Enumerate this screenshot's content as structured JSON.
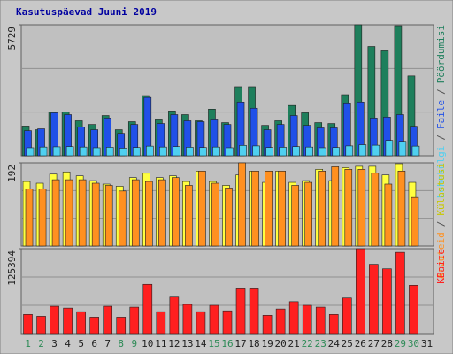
{
  "chart_data": [
    {
      "type": "bar",
      "title": "Kasutuspäevad Juuni 2019",
      "legend_separator": "/",
      "ylim": [
        0,
        5729
      ],
      "yticks": [
        5729
      ],
      "series": [
        {
          "name": "Pöördumisi",
          "color": "#1e7f5c",
          "values": [
            1300,
            1140,
            1920,
            1920,
            1530,
            1370,
            1760,
            1140,
            1490,
            2630,
            1570,
            1960,
            1800,
            1530,
            2040,
            1450,
            3020,
            3020,
            1330,
            1530,
            2200,
            1880,
            1450,
            1410,
            2670,
            5729,
            4780,
            4590,
            5690,
            3490,
            null
          ]
        },
        {
          "name": "Faile",
          "color": "#2050e8",
          "values": [
            1100,
            1180,
            1880,
            1800,
            1260,
            1140,
            1650,
            980,
            1370,
            2550,
            1410,
            1800,
            1530,
            1490,
            1570,
            1370,
            2350,
            2080,
            1140,
            1370,
            1760,
            1330,
            1220,
            1220,
            2310,
            2350,
            1650,
            1690,
            1800,
            1290,
            null
          ]
        },
        {
          "name": "Lehekülgi",
          "color": "#4fd0f0",
          "values": [
            350,
            380,
            390,
            400,
            380,
            350,
            370,
            330,
            360,
            420,
            380,
            400,
            370,
            360,
            380,
            350,
            450,
            430,
            360,
            370,
            400,
            380,
            350,
            360,
            430,
            480,
            460,
            670,
            630,
            420,
            null
          ]
        }
      ]
    },
    {
      "type": "bar",
      "legend_separator": "/",
      "ylim": [
        0,
        192
      ],
      "yticks": [
        192
      ],
      "series": [
        {
          "name": "Külastusi",
          "color": "#ffff40",
          "values": [
            149,
            145,
            166,
            171,
            162,
            151,
            143,
            138,
            158,
            168,
            158,
            162,
            149,
            173,
            149,
            140,
            164,
            173,
            147,
            173,
            147,
            151,
            177,
            151,
            181,
            184,
            184,
            164,
            190,
            147,
            null
          ]
        },
        {
          "name": "Arvuteid",
          "color": "#ff9020",
          "values": [
            132,
            132,
            153,
            153,
            153,
            145,
            140,
            127,
            153,
            149,
            153,
            158,
            140,
            173,
            145,
            134,
            192,
            173,
            173,
            173,
            140,
            147,
            173,
            183,
            177,
            177,
            168,
            143,
            173,
            112,
            null
          ]
        }
      ]
    },
    {
      "type": "bar",
      "ylim": [
        0,
        125394
      ],
      "yticks": [
        125394
      ],
      "categories": [
        "1",
        "2",
        "3",
        "4",
        "5",
        "6",
        "7",
        "8",
        "9",
        "10",
        "11",
        "12",
        "13",
        "14",
        "15",
        "16",
        "17",
        "18",
        "19",
        "20",
        "21",
        "22",
        "23",
        "24",
        "25",
        "26",
        "27",
        "28",
        "29",
        "30",
        "31"
      ],
      "category_colors": [
        "#2e8b57",
        "#2e8b57",
        "#202020",
        "#202020",
        "#202020",
        "#202020",
        "#202020",
        "#2e8b57",
        "#2e8b57",
        "#202020",
        "#202020",
        "#202020",
        "#202020",
        "#202020",
        "#2e8b57",
        "#2e8b57",
        "#202020",
        "#202020",
        "#202020",
        "#202020",
        "#202020",
        "#2e8b57",
        "#2e8b57",
        "#202020",
        "#202020",
        "#202020",
        "#202020",
        "#202020",
        "#2e8b57",
        "#2e8b57",
        "#202020"
      ],
      "series": [
        {
          "name": "KBaite",
          "color": "#ff2020",
          "values": [
            28300,
            25600,
            40400,
            37700,
            32400,
            24300,
            40400,
            24300,
            39100,
            72800,
            32400,
            53900,
            43100,
            32400,
            41800,
            33700,
            67400,
            67400,
            27000,
            36400,
            47200,
            41800,
            39100,
            28300,
            52600,
            125394,
            102400,
            95700,
            120000,
            71400,
            null
          ]
        }
      ]
    }
  ]
}
